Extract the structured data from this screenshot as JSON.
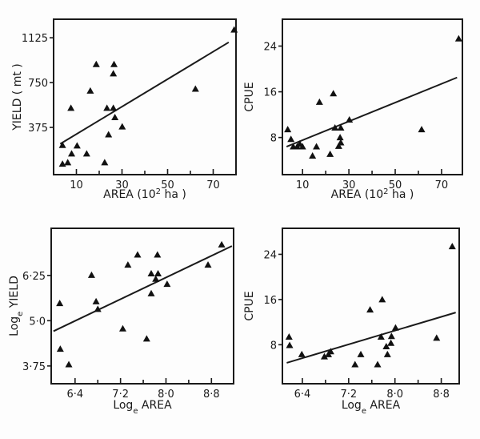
{
  "chart_data": [
    {
      "type": "scatter",
      "xlabel": [
        {
          "t": "AREA (10"
        },
        {
          "t": "2",
          "sup": true
        },
        {
          "t": " ha )"
        }
      ],
      "ylabel": [
        {
          "t": "YIELD ( mt )"
        }
      ],
      "xlim": [
        0,
        80
      ],
      "ylim": [
        -20,
        1280
      ],
      "xticks": [
        {
          "v": 10,
          "label": "10"
        },
        {
          "v": 30,
          "label": "30"
        },
        {
          "v": 50,
          "label": "50"
        },
        {
          "v": 70,
          "label": "70"
        }
      ],
      "xminor": [
        20,
        40,
        60
      ],
      "yticks": [
        {
          "v": 375,
          "label": "375"
        },
        {
          "v": 750,
          "label": "750"
        },
        {
          "v": 1125,
          "label": "1125"
        }
      ],
      "points": [
        [
          79.2,
          1192
        ],
        [
          18.7,
          903
        ],
        [
          26.5,
          903
        ],
        [
          26.2,
          825
        ],
        [
          16.1,
          681
        ],
        [
          7.6,
          537
        ],
        [
          23.4,
          537
        ],
        [
          26.2,
          537
        ],
        [
          26.9,
          459
        ],
        [
          30.1,
          381
        ],
        [
          24.1,
          315
        ],
        [
          3.9,
          226
        ],
        [
          10.3,
          222
        ],
        [
          7.9,
          155
        ],
        [
          14.5,
          155
        ],
        [
          22.4,
          81
        ],
        [
          3.9,
          70
        ],
        [
          6.2,
          81
        ],
        [
          62.2,
          697
        ]
      ],
      "fit_line": [
        [
          2.9,
          237
        ],
        [
          76.8,
          1087
        ]
      ],
      "marker": "triangle",
      "grid": false
    },
    {
      "type": "scatter",
      "xlabel": [
        {
          "t": "AREA (10"
        },
        {
          "t": "2",
          "sup": true
        },
        {
          "t": " ha )"
        }
      ],
      "ylabel": [
        {
          "t": "CPUE"
        }
      ],
      "xlim": [
        1.3,
        79
      ],
      "ylim": [
        1.5,
        28.7
      ],
      "xticks": [
        {
          "v": 10,
          "label": "10"
        },
        {
          "v": 30,
          "label": "30"
        },
        {
          "v": 50,
          "label": "50"
        },
        {
          "v": 70,
          "label": "70"
        }
      ],
      "xminor": [
        20,
        40,
        60
      ],
      "yticks": [
        {
          "v": 8,
          "label": "8"
        },
        {
          "v": 16,
          "label": "16"
        },
        {
          "v": 24,
          "label": "24"
        }
      ],
      "points": [
        [
          77.4,
          25.3
        ],
        [
          23.3,
          15.7
        ],
        [
          17.3,
          14.2
        ],
        [
          30.2,
          11.1
        ],
        [
          3.6,
          9.4
        ],
        [
          24.0,
          9.7
        ],
        [
          26.5,
          9.7
        ],
        [
          61.4,
          9.4
        ],
        [
          5.0,
          7.7
        ],
        [
          26.2,
          8.0
        ],
        [
          26.5,
          7.1
        ],
        [
          6.0,
          6.4
        ],
        [
          7.7,
          6.4
        ],
        [
          10.0,
          6.4
        ],
        [
          8.8,
          6.9
        ],
        [
          16.0,
          6.4
        ],
        [
          25.6,
          6.5
        ],
        [
          21.9,
          5.1
        ],
        [
          14.3,
          4.8
        ]
      ],
      "fit_line": [
        [
          3.1,
          6.4
        ],
        [
          76.7,
          18.5
        ]
      ],
      "marker": "triangle",
      "grid": false
    },
    {
      "type": "scatter",
      "xlabel": [
        {
          "t": "Log"
        },
        {
          "t": "e",
          "sub": true
        },
        {
          "t": " AREA"
        }
      ],
      "ylabel": [
        {
          "t": "Log"
        },
        {
          "t": "e",
          "sub": true
        },
        {
          "t": " YIELD"
        }
      ],
      "xlim": [
        5.98,
        9.19
      ],
      "ylim": [
        3.26,
        7.55
      ],
      "xticks": [
        {
          "v": 6.4,
          "label": "6·4"
        },
        {
          "v": 7.2,
          "label": "7·2"
        },
        {
          "v": 8.0,
          "label": "8·0"
        },
        {
          "v": 8.8,
          "label": "8·8"
        }
      ],
      "xminor": [
        6.8,
        7.6,
        8.4
      ],
      "yticks": [
        {
          "v": 3.75,
          "label": "3·75"
        },
        {
          "v": 5.0,
          "label": "5·0"
        },
        {
          "v": 6.25,
          "label": "6·25"
        }
      ],
      "points": [
        [
          8.98,
          7.1
        ],
        [
          7.5,
          6.82
        ],
        [
          7.85,
          6.82
        ],
        [
          7.33,
          6.54
        ],
        [
          8.74,
          6.54
        ],
        [
          6.69,
          6.26
        ],
        [
          7.74,
          6.3
        ],
        [
          7.86,
          6.3
        ],
        [
          7.82,
          6.15
        ],
        [
          8.02,
          6.01
        ],
        [
          7.74,
          5.75
        ],
        [
          6.13,
          5.48
        ],
        [
          6.77,
          5.53
        ],
        [
          6.8,
          5.32
        ],
        [
          7.24,
          4.78
        ],
        [
          7.66,
          4.5
        ],
        [
          6.14,
          4.22
        ],
        [
          6.29,
          3.79
        ]
      ],
      "fit_line": [
        [
          6.02,
          4.71
        ],
        [
          9.16,
          7.06
        ]
      ],
      "marker": "triangle",
      "grid": false
    },
    {
      "type": "scatter",
      "xlabel": [
        {
          "t": "Log"
        },
        {
          "t": "e",
          "sub": true
        },
        {
          "t": " AREA"
        }
      ],
      "ylabel": [
        {
          "t": "CPUE"
        }
      ],
      "xlim": [
        6.055,
        9.11
      ],
      "ylim": [
        1.1,
        28.6
      ],
      "xticks": [
        {
          "v": 6.4,
          "label": "6·4"
        },
        {
          "v": 7.2,
          "label": "7·2"
        },
        {
          "v": 8.0,
          "label": "8·0"
        },
        {
          "v": 8.8,
          "label": "8·8"
        }
      ],
      "xminor": [
        6.8,
        7.6,
        8.4
      ],
      "yticks": [
        {
          "v": 8,
          "label": "8"
        },
        {
          "v": 16,
          "label": "16"
        },
        {
          "v": 24,
          "label": "24"
        }
      ],
      "points": [
        [
          8.99,
          25.4
        ],
        [
          7.78,
          16.0
        ],
        [
          7.57,
          14.2
        ],
        [
          8.01,
          11.0
        ],
        [
          6.17,
          9.4
        ],
        [
          7.76,
          9.4
        ],
        [
          7.94,
          9.5
        ],
        [
          8.72,
          9.2
        ],
        [
          6.18,
          7.9
        ],
        [
          7.93,
          8.3
        ],
        [
          7.85,
          7.7
        ],
        [
          6.39,
          6.3
        ],
        [
          7.41,
          6.3
        ],
        [
          7.87,
          6.3
        ],
        [
          6.78,
          5.9
        ],
        [
          6.85,
          6.3
        ],
        [
          6.89,
          6.8
        ],
        [
          7.31,
          4.5
        ],
        [
          7.7,
          4.5
        ]
      ],
      "fit_line": [
        [
          6.13,
          4.8
        ],
        [
          9.05,
          13.7
        ]
      ],
      "marker": "triangle",
      "grid": false
    }
  ]
}
